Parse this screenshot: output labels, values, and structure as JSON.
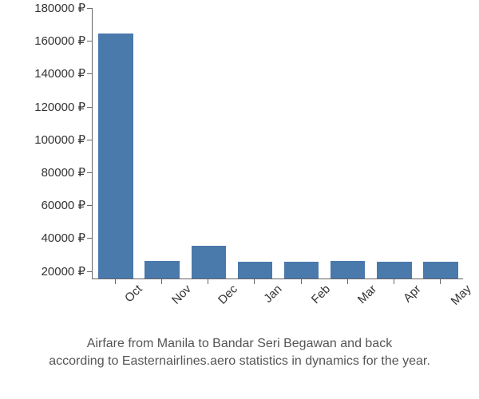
{
  "chart": {
    "type": "bar",
    "categories": [
      "Oct",
      "Nov",
      "Dec",
      "Jan",
      "Feb",
      "Mar",
      "Apr",
      "May"
    ],
    "values": [
      164000,
      25500,
      35000,
      25000,
      25000,
      25500,
      25000,
      25000
    ],
    "bar_color": "#4a79ab",
    "ylim": [
      15000,
      180000
    ],
    "ytick_start": 20000,
    "ytick_step": 20000,
    "currency_suffix": " ₽",
    "axis_color": "#666666",
    "tick_font_size": 15,
    "tick_color": "#333333",
    "bar_width_ratio": 0.75,
    "x_label_rotation": -45,
    "background_color": "#ffffff"
  },
  "caption": {
    "line1": "Airfare from Manila to Bandar Seri Begawan and back",
    "line2": "according to Easternairlines.aero statistics in dynamics for the year.",
    "font_size": 16,
    "color": "#555555"
  }
}
